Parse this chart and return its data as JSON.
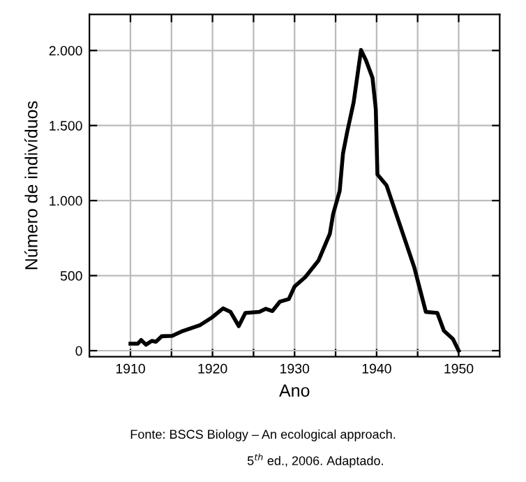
{
  "chart_data": {
    "type": "line",
    "xlabel": "Ano",
    "ylabel": "Número de indivíduos",
    "x": [
      1910,
      1910.9,
      1911.3,
      1911.9,
      1912.6,
      1913.1,
      1913.8,
      1915.1,
      1916.2,
      1918.5,
      1919.9,
      1921.3,
      1922.2,
      1923.2,
      1924.0,
      1925.7,
      1926.5,
      1927.3,
      1928.2,
      1929.3,
      1930.0,
      1931.3,
      1932.9,
      1934.3,
      1934.7,
      1935.5,
      1935.9,
      1936.4,
      1937.2,
      1938.1,
      1938.7,
      1939.5,
      1939.9,
      1940.1,
      1941.2,
      1944.6,
      1946.0,
      1947.4,
      1948.2,
      1949.3,
      1950
    ],
    "series": [
      {
        "color": "#000000",
        "values": [
          47,
          47,
          71,
          40,
          65,
          59,
          96,
          99,
          127,
          171,
          220,
          282,
          258,
          164,
          251,
          258,
          279,
          264,
          326,
          344,
          428,
          490,
          599,
          779,
          910,
          1065,
          1313,
          1453,
          1655,
          2003,
          1935,
          1817,
          1609,
          1174,
          1102,
          553,
          258,
          251,
          133,
          78,
          0
        ]
      }
    ],
    "xlim": [
      1905,
      1955
    ],
    "ylim": [
      -40,
      2240
    ],
    "xticks": [
      1910,
      {
        "value": 1915,
        "label": null
      },
      1920,
      {
        "value": 1925,
        "label": null
      },
      1930,
      {
        "value": 1935,
        "label": null
      },
      1940,
      {
        "value": 1945,
        "label": null
      },
      1950
    ],
    "yticks": [
      0,
      500,
      {
        "value": 1000,
        "label": "1.000"
      },
      {
        "value": 1500,
        "label": "1.500"
      },
      {
        "value": 2000,
        "label": "2.000"
      }
    ],
    "grid": true,
    "legend": false,
    "marker": "none",
    "line_style": "solid",
    "annotations": [
      "Fonte: BSCS Biology – An ecological approach.",
      "5$^{th}$ ed., 2006. Adaptado."
    ]
  }
}
